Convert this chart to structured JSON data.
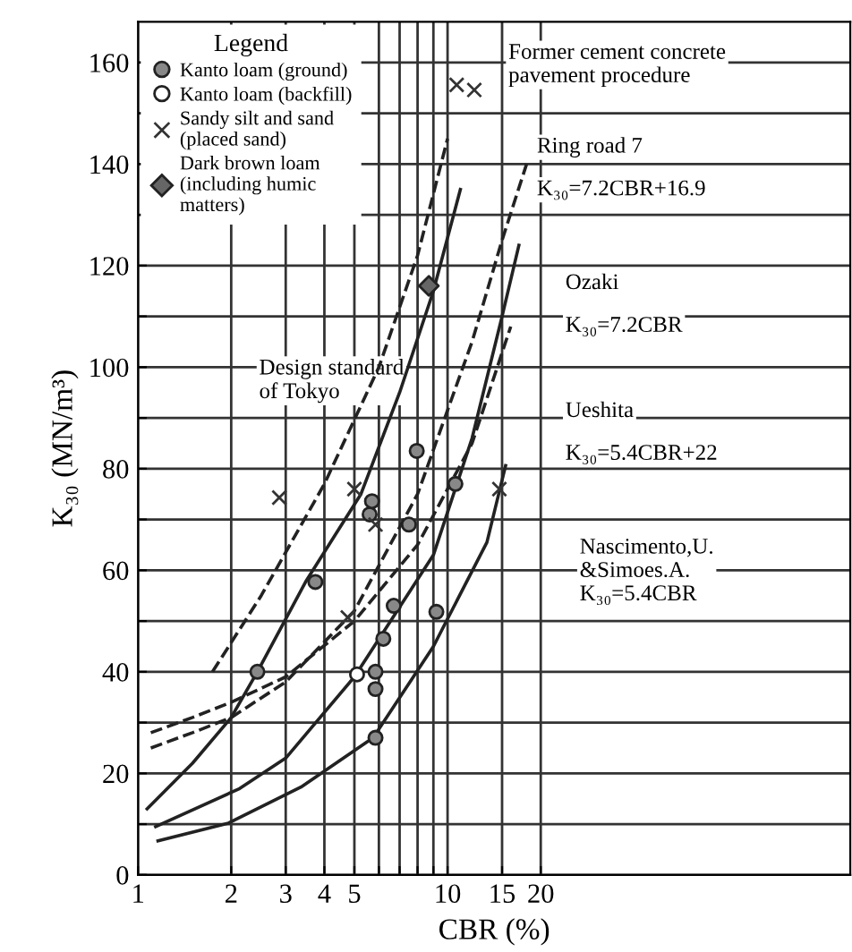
{
  "chart_data": {
    "type": "line",
    "xlabel": "CBR (%)",
    "ylabel": "K₃₀ (MN/m³)",
    "log": "x",
    "xlim": [
      1,
      200
    ],
    "xticks": [
      1,
      2,
      3,
      4,
      5,
      {
        "value": 6,
        "label": null
      },
      {
        "value": 7,
        "label": null
      },
      {
        "value": 8,
        "label": null
      },
      {
        "value": 9,
        "label": null
      },
      10,
      15,
      20
    ],
    "ylim": [
      0,
      168
    ],
    "yticks": [
      0,
      {
        "value": 10,
        "label": null
      },
      20,
      {
        "value": 30,
        "label": null
      },
      40,
      {
        "value": 50,
        "label": null
      },
      60,
      {
        "value": 70,
        "label": null
      },
      80,
      {
        "value": 90,
        "label": null
      },
      100,
      {
        "value": 110,
        "label": null
      },
      120,
      {
        "value": 130,
        "label": null
      },
      140,
      {
        "value": 150,
        "label": null
      },
      160
    ],
    "grid": true,
    "legend": "top left",
    "legend_title": "Legend",
    "series": [
      {
        "name": "Kanto loam (ground)",
        "type": "scatter",
        "marker": "circle",
        "color": "#888888",
        "x": [
          2.43,
          3.74,
          5.6,
          5.7,
          7.5,
          6.7,
          6.2,
          5.85,
          5.85,
          5.85,
          9.2,
          10.6,
          7.95
        ],
        "values": [
          40,
          57.7,
          71,
          73.6,
          69,
          53,
          46.5,
          40,
          36.6,
          27,
          51.8,
          77,
          83.5
        ]
      },
      {
        "name": "Kanto loam (backfill)",
        "type": "scatter",
        "marker": "circle",
        "color": "#ffffff",
        "x": [
          5.1
        ],
        "values": [
          39.5
        ]
      },
      {
        "name": "Sandy silt and sand\n(placed sand)",
        "type": "scatter",
        "marker": "cross",
        "color": "#333333",
        "x": [
          2.86,
          5.0,
          5.85,
          4.76,
          10.7,
          12.2,
          14.7
        ],
        "values": [
          74.3,
          76,
          69,
          50.7,
          155.6,
          154.6,
          76
        ]
      },
      {
        "name": "Dark brown loam\n(including humic\nmatters)",
        "type": "scatter",
        "marker": "diamond",
        "color": "#666666",
        "x": [
          8.7
        ],
        "values": [
          116
        ]
      },
      {
        "line_style": "dashed",
        "color": "#222222",
        "x": [
          1.74,
          2.5,
          4,
          6,
          8,
          10
        ],
        "values": [
          40,
          55,
          77,
          100,
          122,
          145
        ]
      },
      {
        "line_style": "solid",
        "color": "#222222",
        "x": [
          1.07,
          1.5,
          2,
          2.43,
          3.5,
          5.25,
          7,
          9,
          11
        ],
        "values": [
          13,
          22,
          31,
          40,
          58,
          75,
          95,
          115,
          135
        ]
      },
      {
        "line_style": "dashed",
        "color": "#222222",
        "x": [
          1.1,
          1.5,
          2,
          3,
          5,
          8,
          12,
          15,
          18
        ],
        "values": [
          25,
          28,
          31,
          38,
          52,
          75,
          105,
          125,
          140
        ]
      },
      {
        "line_style": "dashed",
        "color": "#222222",
        "x": [
          1.1,
          1.5,
          2,
          3,
          5,
          8,
          12,
          16
        ],
        "values": [
          28,
          31,
          34,
          39,
          50,
          65,
          85,
          108
        ]
      },
      {
        "line_style": "solid",
        "color": "#222222",
        "x": [
          1.14,
          2.13,
          3,
          5,
          9,
          12,
          15,
          17
        ],
        "values": [
          9.5,
          17,
          23,
          39,
          63,
          86,
          110,
          124
        ]
      },
      {
        "line_style": "solid",
        "color": "#222222",
        "x": [
          1.16,
          1.96,
          3.36,
          5.75,
          9,
          13.4,
          15.4
        ],
        "values": [
          6.7,
          10.2,
          17.3,
          27,
          45,
          65.5,
          80.6
        ]
      }
    ],
    "annotations": [
      "Former cement concrete\npavement procedure",
      "Ring road 7",
      "K₃₀=7.2CBR+16.9",
      "Ozaki",
      "K₃₀=7.2CBR",
      "Ueshita",
      "K₃₀=5.4CBR+22",
      "Design standard\nof Tokyo",
      "Nascimento,U.\n&Simoes.A.\nK₃₀=5.4CBR"
    ]
  }
}
